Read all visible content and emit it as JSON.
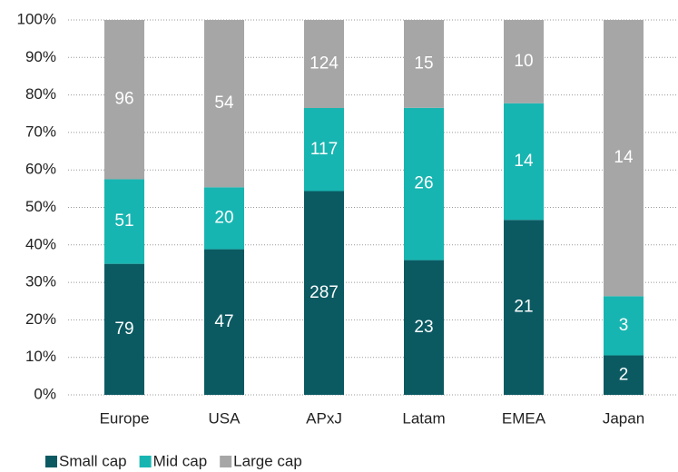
{
  "chart_data": {
    "type": "bar",
    "stacking": "percent",
    "categories": [
      "Europe",
      "USA",
      "APxJ",
      "Latam",
      "EMEA",
      "Japan"
    ],
    "series": [
      {
        "name": "Small cap",
        "color": "#0b5a62",
        "values": [
          79,
          47,
          287,
          23,
          21,
          2
        ]
      },
      {
        "name": "Mid cap",
        "color": "#17b5b1",
        "values": [
          51,
          20,
          117,
          26,
          14,
          3
        ]
      },
      {
        "name": "Large cap",
        "color": "#a6a6a6",
        "values": [
          96,
          54,
          124,
          15,
          10,
          14
        ]
      }
    ],
    "ylim": [
      0,
      100
    ],
    "yticks": [
      {
        "value": 0,
        "label": "0%"
      },
      {
        "value": 10,
        "label": "10%"
      },
      {
        "value": 20,
        "label": "20%"
      },
      {
        "value": 30,
        "label": "30%"
      },
      {
        "value": 40,
        "label": "40%"
      },
      {
        "value": 50,
        "label": "50%"
      },
      {
        "value": 60,
        "label": "60%"
      },
      {
        "value": 70,
        "label": "70%"
      },
      {
        "value": 80,
        "label": "80%"
      },
      {
        "value": 90,
        "label": "90%"
      },
      {
        "value": 100,
        "label": "100%"
      }
    ],
    "grid": true,
    "legend": "bottom-left"
  }
}
